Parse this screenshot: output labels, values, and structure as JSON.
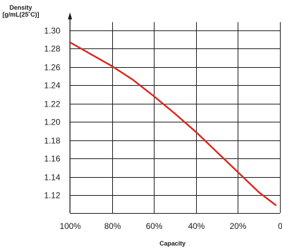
{
  "chart_data": {
    "type": "line",
    "title": "",
    "ylabel_line1": "Density",
    "ylabel_line2": "[g/mL(25˚C)]",
    "xlabel": "Capacity",
    "x_ticks": [
      100,
      80,
      60,
      40,
      20,
      0
    ],
    "x_tick_labels": [
      "100%",
      "80%",
      "60%",
      "40%",
      "20%",
      "0"
    ],
    "y_ticks": [
      1.3,
      1.28,
      1.26,
      1.24,
      1.22,
      1.2,
      1.18,
      1.16,
      1.14,
      1.12
    ],
    "y_tick_labels": [
      "1.30",
      "1.28",
      "1.26",
      "1.24",
      "1.22",
      "1.20",
      "1.18",
      "1.16",
      "1.14",
      "1.12"
    ],
    "xlim": [
      100,
      0
    ],
    "ylim": [
      1.1,
      1.3
    ],
    "grid": true,
    "series": [
      {
        "color": "#d42a20",
        "x": [
          100,
          90,
          80,
          70,
          60,
          50,
          40,
          30,
          20,
          10,
          2
        ],
        "y": [
          1.287,
          1.274,
          1.261,
          1.246,
          1.228,
          1.209,
          1.189,
          1.167,
          1.145,
          1.123,
          1.109
        ]
      }
    ]
  }
}
